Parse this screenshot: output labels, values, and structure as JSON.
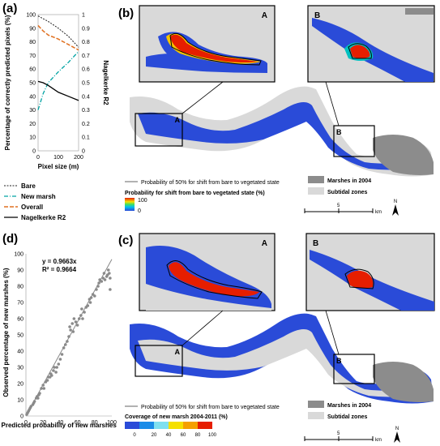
{
  "panels": {
    "a_label": "(a)",
    "b_label": "(b)",
    "c_label": "(c)",
    "d_label": "(d)",
    "inset_a": "A",
    "inset_b": "B"
  },
  "panel_a": {
    "ylabel_left": "Percentage of correctly predicted pixels (%)",
    "ylabel_right": "Nagelkerke R2",
    "xlabel": "Pixel size (m)",
    "yticks_left": [
      "0",
      "10",
      "20",
      "30",
      "40",
      "50",
      "60",
      "70",
      "80",
      "90",
      "100"
    ],
    "yticks_right": [
      "0",
      "0.1",
      "0.2",
      "0.3",
      "0.4",
      "0.5",
      "0.6",
      "0.7",
      "0.8",
      "0.9",
      "1"
    ],
    "xticks": [
      "0",
      "100",
      "200"
    ],
    "legend": [
      "Bare",
      "New marsh",
      "Overall",
      "Nagelkerke R2"
    ]
  },
  "panel_b": {
    "line_legend": "Probability of 50% for shift from bare to vegetated state",
    "colorbar_title": "Probability for shift from bare to vegetated state (%)",
    "colorbar_max": "100",
    "colorbar_min": "0",
    "marsh_legend": "Marshes in 2004",
    "subtidal_legend": "Subtidal zones",
    "scale_value": "5",
    "scale_unit": "km",
    "north": "N"
  },
  "panel_c": {
    "line_legend": "Probability of 50% for shift from bare to vegetated state",
    "colorbar_title": "Coverage of new marsh 2004-2011 (%)",
    "colorbar_ticks": [
      "0",
      "20",
      "40",
      "60",
      "80",
      "100"
    ],
    "marsh_legend": "Marshes in 2004",
    "subtidal_legend": "Subtidal zones",
    "scale_value": "5",
    "scale_unit": "km",
    "north": "N"
  },
  "panel_d": {
    "equation": "y = 0.9663x",
    "r2": "R² = 0.9664",
    "xlabel": "Predicted probability of new marshes (%)",
    "ylabel": "Observed percentage of new marshes (%)",
    "xticks": [
      "0",
      "20",
      "40",
      "60",
      "80",
      "100"
    ],
    "yticks": [
      "0",
      "10",
      "20",
      "30",
      "40",
      "50",
      "60",
      "70",
      "80",
      "90",
      "100"
    ]
  },
  "colors": {
    "bare": "#222222",
    "new_marsh": "#00a3a3",
    "overall": "#e07020",
    "nagelkerke": "#000000",
    "marsh": "#8c8c8c",
    "subtidal": "#d9d9d9",
    "water_blue": "#2a4bd8",
    "scatter": "#8a8a8a"
  },
  "chart_data": [
    {
      "type": "line",
      "panel": "a",
      "x": [
        0,
        25,
        50,
        100,
        150,
        200
      ],
      "series": [
        {
          "name": "Bare",
          "axis": "left",
          "values": [
            99,
            97,
            95,
            90,
            84,
            76
          ]
        },
        {
          "name": "New marsh",
          "axis": "left",
          "values": [
            30,
            42,
            50,
            58,
            65,
            73
          ]
        },
        {
          "name": "Overall",
          "axis": "left",
          "values": [
            92,
            88,
            85,
            82,
            78,
            74
          ]
        },
        {
          "name": "Nagelkerke R2",
          "axis": "right",
          "values": [
            0.51,
            0.5,
            0.48,
            0.43,
            0.4,
            0.37
          ]
        }
      ],
      "xlabel": "Pixel size (m)",
      "ylabel": "Percentage of correctly predicted pixels (%)",
      "y2label": "Nagelkerke R2",
      "xlim": [
        0,
        200
      ],
      "ylim": [
        0,
        100
      ],
      "y2lim": [
        0,
        1
      ]
    },
    {
      "type": "scatter",
      "panel": "d",
      "points": [
        [
          1,
          1
        ],
        [
          2,
          2
        ],
        [
          3,
          3
        ],
        [
          4,
          4
        ],
        [
          5,
          5
        ],
        [
          6,
          6
        ],
        [
          8,
          7
        ],
        [
          9,
          8
        ],
        [
          10,
          9
        ],
        [
          12,
          11
        ],
        [
          13,
          12
        ],
        [
          14,
          11
        ],
        [
          15,
          13
        ],
        [
          16,
          14
        ],
        [
          18,
          17
        ],
        [
          20,
          19
        ],
        [
          21,
          17
        ],
        [
          23,
          21
        ],
        [
          25,
          22
        ],
        [
          26,
          24
        ],
        [
          28,
          24
        ],
        [
          29,
          26
        ],
        [
          30,
          25
        ],
        [
          32,
          28
        ],
        [
          33,
          30
        ],
        [
          35,
          27
        ],
        [
          36,
          30
        ],
        [
          38,
          32
        ],
        [
          40,
          35
        ],
        [
          42,
          38
        ],
        [
          44,
          42
        ],
        [
          46,
          44
        ],
        [
          48,
          46
        ],
        [
          50,
          49
        ],
        [
          51,
          55
        ],
        [
          52,
          53
        ],
        [
          54,
          57
        ],
        [
          55,
          52
        ],
        [
          56,
          60
        ],
        [
          58,
          58
        ],
        [
          60,
          56
        ],
        [
          62,
          60
        ],
        [
          64,
          62
        ],
        [
          65,
          66
        ],
        [
          66,
          60
        ],
        [
          68,
          64
        ],
        [
          70,
          67
        ],
        [
          72,
          68
        ],
        [
          74,
          72
        ],
        [
          75,
          70
        ],
        [
          76,
          73
        ],
        [
          78,
          75
        ],
        [
          80,
          74
        ],
        [
          82,
          78
        ],
        [
          84,
          80
        ],
        [
          85,
          82
        ],
        [
          86,
          84
        ],
        [
          88,
          83
        ],
        [
          90,
          85
        ],
        [
          91,
          88
        ],
        [
          92,
          84
        ],
        [
          94,
          86
        ],
        [
          95,
          87
        ],
        [
          96,
          90
        ],
        [
          97,
          88
        ],
        [
          98,
          85
        ],
        [
          98,
          78
        ]
      ],
      "fit": {
        "slope": 0.9663,
        "r2": 0.9664
      },
      "xlabel": "Predicted probability of new marshes (%)",
      "ylabel": "Observed percentage of new marshes (%)",
      "xlim": [
        0,
        100
      ],
      "ylim": [
        0,
        100
      ]
    }
  ]
}
